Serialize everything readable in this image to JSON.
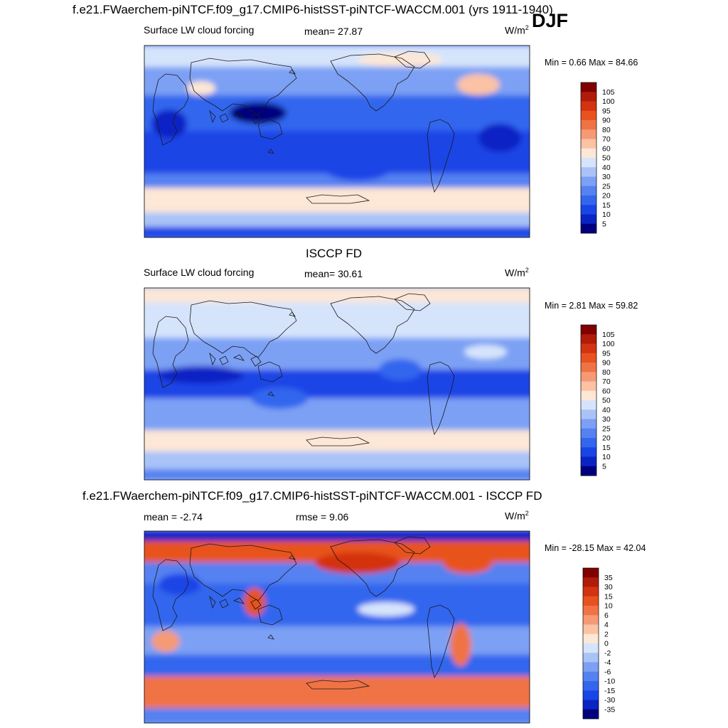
{
  "header": {
    "title": "f.e21.FWaerchem-piNTCF.f09_g17.CMIP6-histSST-piNTCF-WACCM.001 (yrs 1911-1940)",
    "season": "DJF"
  },
  "panels": [
    {
      "title": "",
      "left_label": "Surface LW cloud forcing",
      "center_label": "mean=  27.87",
      "units_base": "W/m",
      "units_exp": "2",
      "minmax": "Min =   0.66 Max =  84.66"
    },
    {
      "title": "ISCCP FD",
      "left_label": "Surface LW cloud forcing",
      "center_label": "mean=  30.61",
      "units_base": "W/m",
      "units_exp": "2",
      "minmax": "Min =   2.81 Max =  59.82"
    },
    {
      "title": "f.e21.FWaerchem-piNTCF.f09_g17.CMIP6-histSST-piNTCF-WACCM.001 - ISCCP FD",
      "left_label": "mean =  -2.74",
      "center_label": "rmse =   9.06",
      "units_base": "W/m",
      "units_exp": "2",
      "minmax": "Min = -28.15 Max =  42.04"
    }
  ],
  "colorbars": [
    {
      "levels": [
        "5",
        "10",
        "15",
        "20",
        "25",
        "30",
        "40",
        "50",
        "60",
        "70",
        "80",
        "90",
        "95",
        "100",
        "105"
      ],
      "colors": [
        "#00007f",
        "#0a24c4",
        "#1a45e6",
        "#3366ee",
        "#5581f1",
        "#7ba0f4",
        "#a9c3f7",
        "#d6e4fb",
        "#fde7d6",
        "#fbc2a4",
        "#f59a74",
        "#f07345",
        "#e8521f",
        "#d33310",
        "#b01b0a",
        "#800000"
      ]
    },
    {
      "levels": [
        "5",
        "10",
        "15",
        "20",
        "25",
        "30",
        "40",
        "50",
        "60",
        "70",
        "80",
        "90",
        "95",
        "100",
        "105"
      ],
      "colors": [
        "#00007f",
        "#0a24c4",
        "#1a45e6",
        "#3366ee",
        "#5581f1",
        "#7ba0f4",
        "#a9c3f7",
        "#d6e4fb",
        "#fde7d6",
        "#fbc2a4",
        "#f59a74",
        "#f07345",
        "#e8521f",
        "#d33310",
        "#b01b0a",
        "#800000"
      ]
    },
    {
      "levels": [
        "-35",
        "-30",
        "-15",
        "-10",
        "-6",
        "-4",
        "-2",
        "0",
        "2",
        "4",
        "6",
        "10",
        "15",
        "30",
        "35"
      ],
      "colors": [
        "#00007f",
        "#0a24c4",
        "#1a45e6",
        "#3366ee",
        "#5581f1",
        "#7ba0f4",
        "#a9c3f7",
        "#d6e4fb",
        "#fde7d6",
        "#fbc2a4",
        "#f59a74",
        "#f07345",
        "#e8521f",
        "#d33310",
        "#b01b0a",
        "#800000"
      ]
    }
  ],
  "chart_data": [
    {
      "type": "heatmap",
      "title": "",
      "variable": "Surface LW cloud forcing",
      "units": "W/m2",
      "mean": 27.87,
      "min": 0.66,
      "max": 84.66,
      "contour_levels": [
        5,
        10,
        15,
        20,
        25,
        30,
        40,
        50,
        60,
        70,
        80,
        90,
        95,
        100,
        105
      ]
    },
    {
      "type": "heatmap",
      "title": "ISCCP FD",
      "variable": "Surface LW cloud forcing",
      "units": "W/m2",
      "mean": 30.61,
      "min": 2.81,
      "max": 59.82,
      "contour_levels": [
        5,
        10,
        15,
        20,
        25,
        30,
        40,
        50,
        60,
        70,
        80,
        90,
        95,
        100,
        105
      ]
    },
    {
      "type": "heatmap",
      "title": "f.e21.FWaerchem-piNTCF.f09_g17.CMIP6-histSST-piNTCF-WACCM.001 - ISCCP FD",
      "units": "W/m2",
      "mean": -2.74,
      "rmse": 9.06,
      "min": -28.15,
      "max": 42.04,
      "contour_levels": [
        -35,
        -30,
        -15,
        -10,
        -6,
        -4,
        -2,
        0,
        2,
        4,
        6,
        10,
        15,
        30,
        35
      ]
    }
  ]
}
